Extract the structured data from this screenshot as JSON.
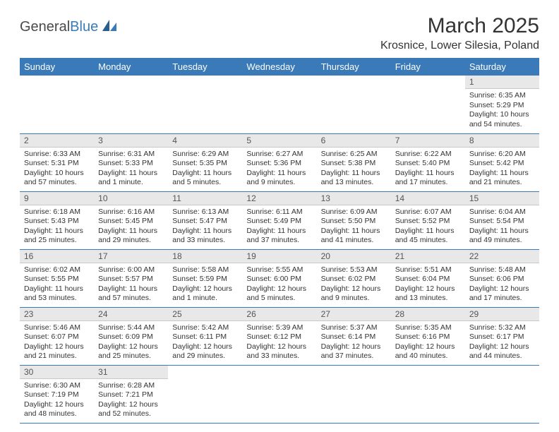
{
  "logo": {
    "general": "General",
    "blue": "Blue"
  },
  "title": "March 2025",
  "location": "Krosnice, Lower Silesia, Poland",
  "colors": {
    "header_bg": "#3a7ab8",
    "header_fg": "#ffffff",
    "daynum_bg": "#e8e8e8",
    "border": "#3a7ab8",
    "text": "#333333"
  },
  "weekdays": [
    "Sunday",
    "Monday",
    "Tuesday",
    "Wednesday",
    "Thursday",
    "Friday",
    "Saturday"
  ],
  "weeks": [
    [
      null,
      null,
      null,
      null,
      null,
      null,
      {
        "d": "1",
        "sr": "Sunrise: 6:35 AM",
        "ss": "Sunset: 5:29 PM",
        "dl": "Daylight: 10 hours and 54 minutes."
      }
    ],
    [
      {
        "d": "2",
        "sr": "Sunrise: 6:33 AM",
        "ss": "Sunset: 5:31 PM",
        "dl": "Daylight: 10 hours and 57 minutes."
      },
      {
        "d": "3",
        "sr": "Sunrise: 6:31 AM",
        "ss": "Sunset: 5:33 PM",
        "dl": "Daylight: 11 hours and 1 minute."
      },
      {
        "d": "4",
        "sr": "Sunrise: 6:29 AM",
        "ss": "Sunset: 5:35 PM",
        "dl": "Daylight: 11 hours and 5 minutes."
      },
      {
        "d": "5",
        "sr": "Sunrise: 6:27 AM",
        "ss": "Sunset: 5:36 PM",
        "dl": "Daylight: 11 hours and 9 minutes."
      },
      {
        "d": "6",
        "sr": "Sunrise: 6:25 AM",
        "ss": "Sunset: 5:38 PM",
        "dl": "Daylight: 11 hours and 13 minutes."
      },
      {
        "d": "7",
        "sr": "Sunrise: 6:22 AM",
        "ss": "Sunset: 5:40 PM",
        "dl": "Daylight: 11 hours and 17 minutes."
      },
      {
        "d": "8",
        "sr": "Sunrise: 6:20 AM",
        "ss": "Sunset: 5:42 PM",
        "dl": "Daylight: 11 hours and 21 minutes."
      }
    ],
    [
      {
        "d": "9",
        "sr": "Sunrise: 6:18 AM",
        "ss": "Sunset: 5:43 PM",
        "dl": "Daylight: 11 hours and 25 minutes."
      },
      {
        "d": "10",
        "sr": "Sunrise: 6:16 AM",
        "ss": "Sunset: 5:45 PM",
        "dl": "Daylight: 11 hours and 29 minutes."
      },
      {
        "d": "11",
        "sr": "Sunrise: 6:13 AM",
        "ss": "Sunset: 5:47 PM",
        "dl": "Daylight: 11 hours and 33 minutes."
      },
      {
        "d": "12",
        "sr": "Sunrise: 6:11 AM",
        "ss": "Sunset: 5:49 PM",
        "dl": "Daylight: 11 hours and 37 minutes."
      },
      {
        "d": "13",
        "sr": "Sunrise: 6:09 AM",
        "ss": "Sunset: 5:50 PM",
        "dl": "Daylight: 11 hours and 41 minutes."
      },
      {
        "d": "14",
        "sr": "Sunrise: 6:07 AM",
        "ss": "Sunset: 5:52 PM",
        "dl": "Daylight: 11 hours and 45 minutes."
      },
      {
        "d": "15",
        "sr": "Sunrise: 6:04 AM",
        "ss": "Sunset: 5:54 PM",
        "dl": "Daylight: 11 hours and 49 minutes."
      }
    ],
    [
      {
        "d": "16",
        "sr": "Sunrise: 6:02 AM",
        "ss": "Sunset: 5:55 PM",
        "dl": "Daylight: 11 hours and 53 minutes."
      },
      {
        "d": "17",
        "sr": "Sunrise: 6:00 AM",
        "ss": "Sunset: 5:57 PM",
        "dl": "Daylight: 11 hours and 57 minutes."
      },
      {
        "d": "18",
        "sr": "Sunrise: 5:58 AM",
        "ss": "Sunset: 5:59 PM",
        "dl": "Daylight: 12 hours and 1 minute."
      },
      {
        "d": "19",
        "sr": "Sunrise: 5:55 AM",
        "ss": "Sunset: 6:00 PM",
        "dl": "Daylight: 12 hours and 5 minutes."
      },
      {
        "d": "20",
        "sr": "Sunrise: 5:53 AM",
        "ss": "Sunset: 6:02 PM",
        "dl": "Daylight: 12 hours and 9 minutes."
      },
      {
        "d": "21",
        "sr": "Sunrise: 5:51 AM",
        "ss": "Sunset: 6:04 PM",
        "dl": "Daylight: 12 hours and 13 minutes."
      },
      {
        "d": "22",
        "sr": "Sunrise: 5:48 AM",
        "ss": "Sunset: 6:06 PM",
        "dl": "Daylight: 12 hours and 17 minutes."
      }
    ],
    [
      {
        "d": "23",
        "sr": "Sunrise: 5:46 AM",
        "ss": "Sunset: 6:07 PM",
        "dl": "Daylight: 12 hours and 21 minutes."
      },
      {
        "d": "24",
        "sr": "Sunrise: 5:44 AM",
        "ss": "Sunset: 6:09 PM",
        "dl": "Daylight: 12 hours and 25 minutes."
      },
      {
        "d": "25",
        "sr": "Sunrise: 5:42 AM",
        "ss": "Sunset: 6:11 PM",
        "dl": "Daylight: 12 hours and 29 minutes."
      },
      {
        "d": "26",
        "sr": "Sunrise: 5:39 AM",
        "ss": "Sunset: 6:12 PM",
        "dl": "Daylight: 12 hours and 33 minutes."
      },
      {
        "d": "27",
        "sr": "Sunrise: 5:37 AM",
        "ss": "Sunset: 6:14 PM",
        "dl": "Daylight: 12 hours and 37 minutes."
      },
      {
        "d": "28",
        "sr": "Sunrise: 5:35 AM",
        "ss": "Sunset: 6:16 PM",
        "dl": "Daylight: 12 hours and 40 minutes."
      },
      {
        "d": "29",
        "sr": "Sunrise: 5:32 AM",
        "ss": "Sunset: 6:17 PM",
        "dl": "Daylight: 12 hours and 44 minutes."
      }
    ],
    [
      {
        "d": "30",
        "sr": "Sunrise: 6:30 AM",
        "ss": "Sunset: 7:19 PM",
        "dl": "Daylight: 12 hours and 48 minutes."
      },
      {
        "d": "31",
        "sr": "Sunrise: 6:28 AM",
        "ss": "Sunset: 7:21 PM",
        "dl": "Daylight: 12 hours and 52 minutes."
      },
      null,
      null,
      null,
      null,
      null
    ]
  ]
}
